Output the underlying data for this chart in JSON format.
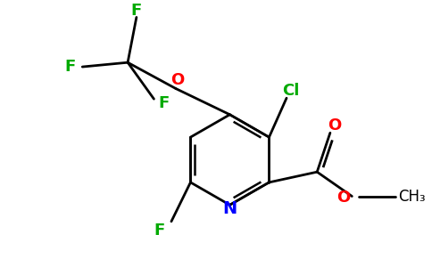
{
  "bg_color": "#ffffff",
  "fig_width": 4.84,
  "fig_height": 3.0,
  "dpi": 100,
  "note": "All coordinates in data units where canvas is 484x300 pixels"
}
